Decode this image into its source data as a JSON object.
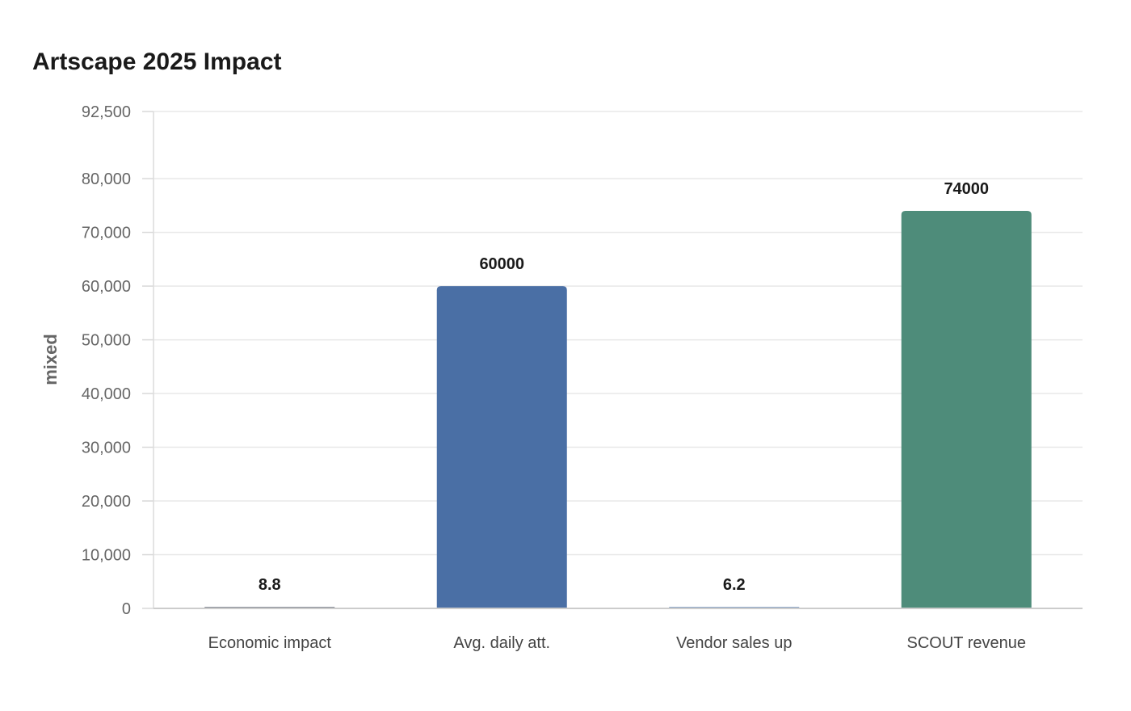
{
  "chart_data": {
    "type": "bar",
    "title": "Artscape 2025 Impact",
    "xlabel": "",
    "ylabel": "mixed",
    "categories": [
      "Economic impact",
      "Avg. daily att.",
      "Vendor sales up",
      "SCOUT revenue"
    ],
    "values": [
      8.8,
      60000,
      6.2,
      74000
    ],
    "value_labels": [
      "8.8",
      "60000",
      "6.2",
      "74000"
    ],
    "colors": [
      "#8a8f99",
      "#4a6fa5",
      "#8fa8c8",
      "#4e8c7a"
    ],
    "ylim": [
      0,
      92500
    ],
    "yticks": [
      0,
      10000,
      20000,
      30000,
      40000,
      50000,
      60000,
      70000,
      80000,
      92500
    ],
    "ytick_labels": [
      "0",
      "10,000",
      "20,000",
      "30,000",
      "40,000",
      "50,000",
      "60,000",
      "70,000",
      "80,000",
      "92,500"
    ],
    "grid": true,
    "legend": "none"
  }
}
